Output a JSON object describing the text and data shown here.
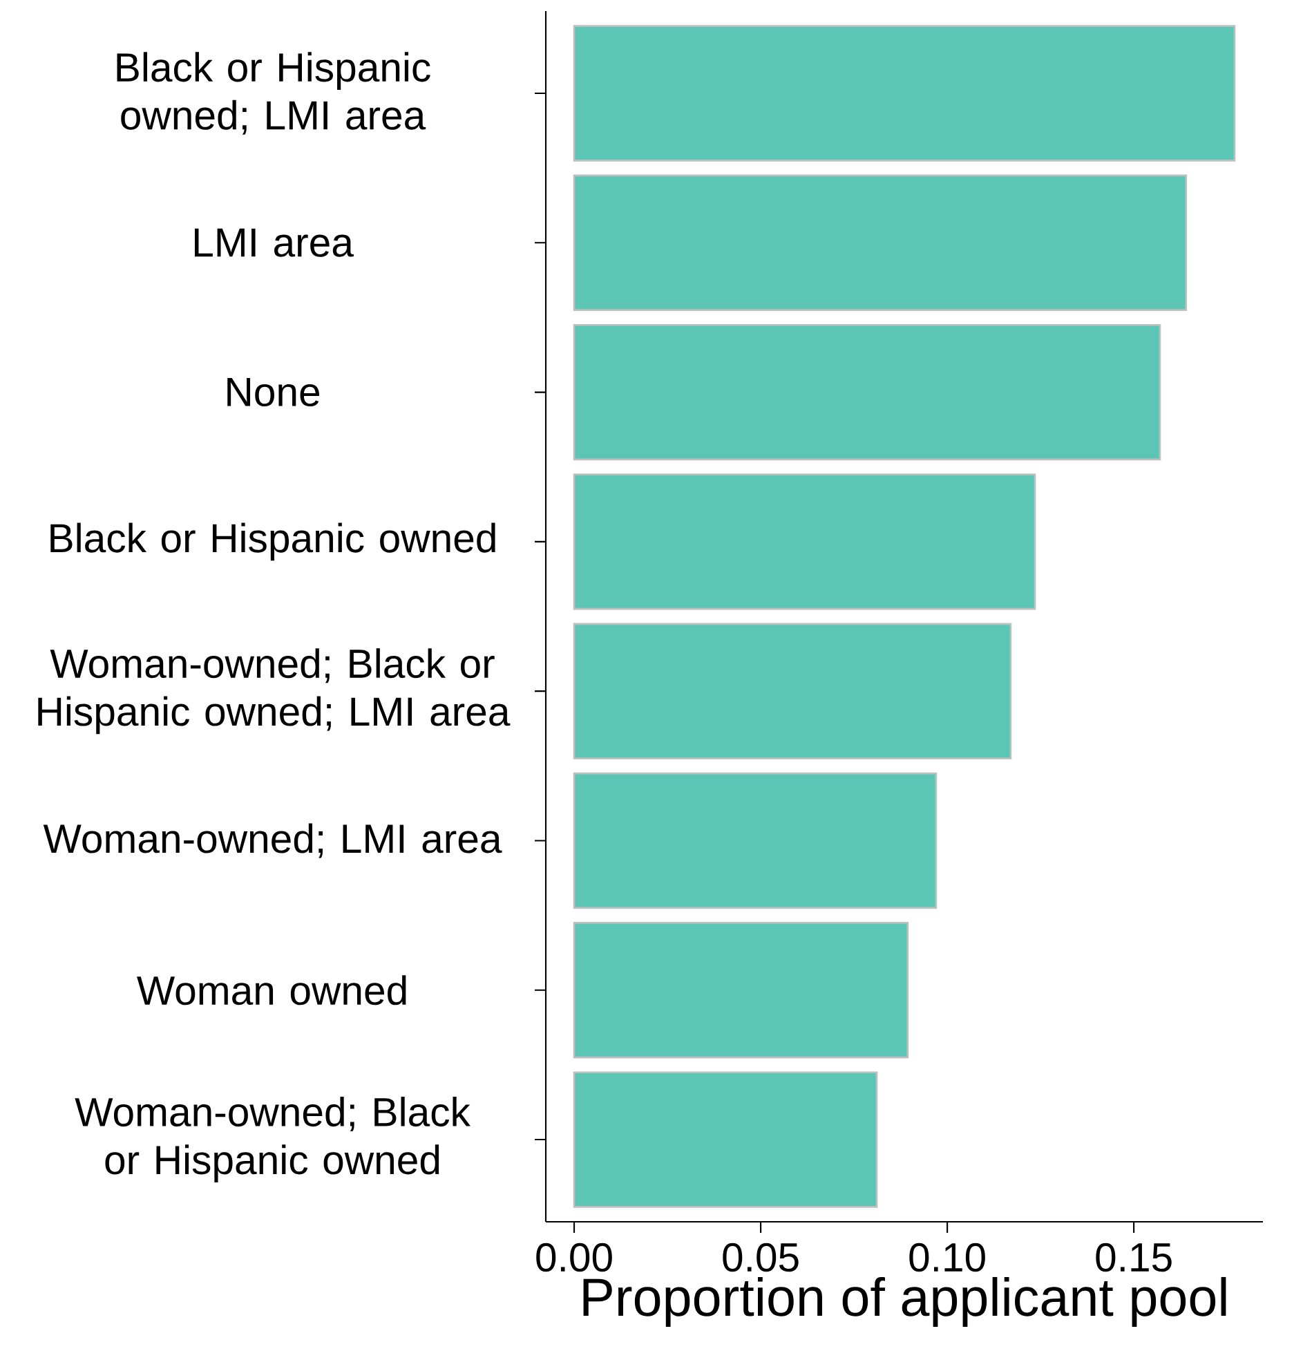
{
  "chart_data": {
    "type": "bar",
    "orientation": "horizontal",
    "xlabel": "Proportion of applicant pool",
    "categories": [
      "Black or Hispanic owned; LMI area",
      "LMI area",
      "None",
      "Black or Hispanic owned",
      "Woman-owned; Black or Hispanic owned; LMI area",
      "Woman-owned; LMI area",
      "Woman owned",
      "Woman-owned; Black or Hispanic owned"
    ],
    "values": [
      0.177,
      0.164,
      0.157,
      0.1235,
      0.117,
      0.097,
      0.0894,
      0.0811
    ],
    "color": "#5cc6b6",
    "xlim": [
      -0.0076,
      0.1846
    ],
    "xticks": [
      {
        "value": 0,
        "label": "0.00"
      },
      0.05,
      {
        "value": 0.1,
        "label": "0.10"
      },
      0.15
    ]
  }
}
